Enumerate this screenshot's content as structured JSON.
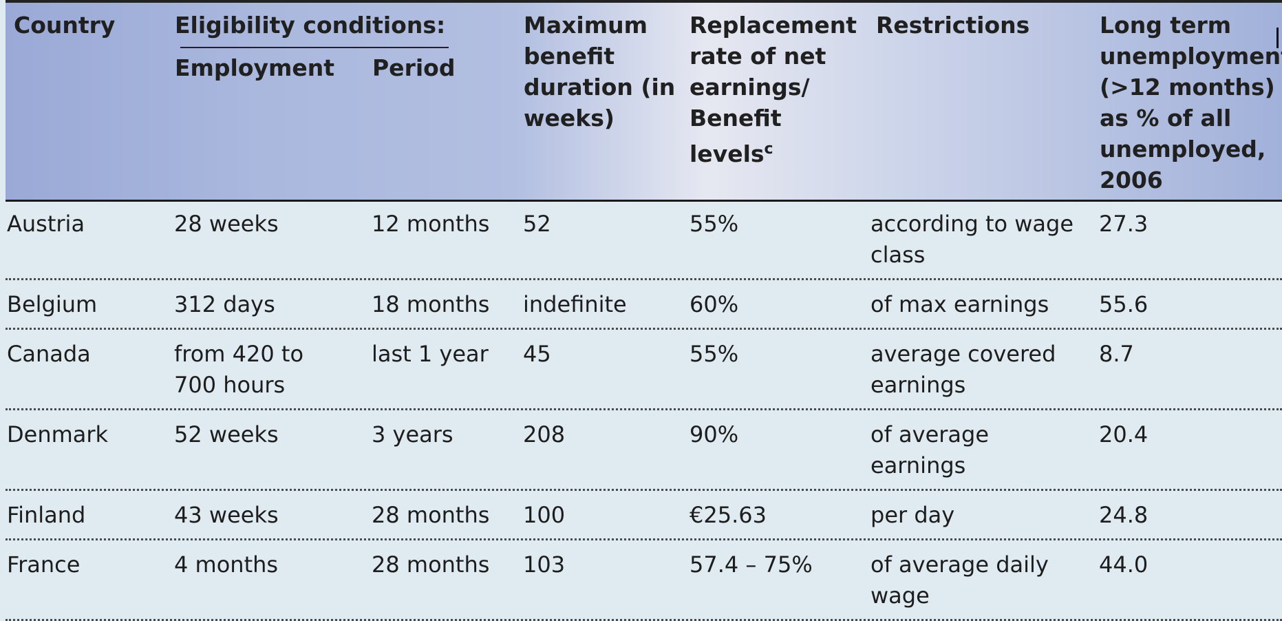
{
  "header": {
    "country": "Country",
    "eligibility": "Eligibility conditions:",
    "employment": "Employment",
    "period": "Period",
    "max_duration_lines": [
      "Maximum",
      "benefit",
      "duration (in",
      "weeks)"
    ],
    "replacement_lines": [
      "Replacement",
      "rate of net",
      "earnings/",
      "Benefit",
      "levels"
    ],
    "replacement_sup": "c",
    "restrictions": "Restrictions",
    "long_term_lines": [
      "Long term",
      "unemployment",
      "(>12 months)",
      "as % of all",
      "unemployed,",
      "2006"
    ]
  },
  "rows": [
    {
      "country": "Austria",
      "employment": [
        "28 weeks"
      ],
      "period": "12 months",
      "duration": "52",
      "replacement": "55%",
      "restrictions": [
        "according to wage",
        "class"
      ],
      "long_term": "27.3"
    },
    {
      "country": "Belgium",
      "employment": [
        "312 days"
      ],
      "period": "18 months",
      "duration": "indefinite",
      "replacement": "60%",
      "restrictions": [
        "of max earnings"
      ],
      "long_term": "55.6"
    },
    {
      "country": "Canada",
      "employment": [
        "from 420 to",
        "700 hours"
      ],
      "period": "last 1 year",
      "duration": "45",
      "replacement": "55%",
      "restrictions": [
        "average covered",
        "earnings"
      ],
      "long_term": "8.7"
    },
    {
      "country": "Denmark",
      "employment": [
        "52 weeks"
      ],
      "period": "3 years",
      "duration": "208",
      "replacement": "90%",
      "restrictions": [
        "of average",
        "earnings"
      ],
      "long_term": "20.4"
    },
    {
      "country": "Finland",
      "employment": [
        "43 weeks"
      ],
      "period": "28 months",
      "duration": "100",
      "replacement": "€25.63",
      "restrictions": [
        "per day"
      ],
      "long_term": "24.8"
    },
    {
      "country": "France",
      "employment": [
        "4 months"
      ],
      "period": "28 months",
      "duration": "103",
      "replacement": "57.4 – 75%",
      "restrictions": [
        "of average daily",
        "wage"
      ],
      "long_term": "44.0"
    }
  ]
}
